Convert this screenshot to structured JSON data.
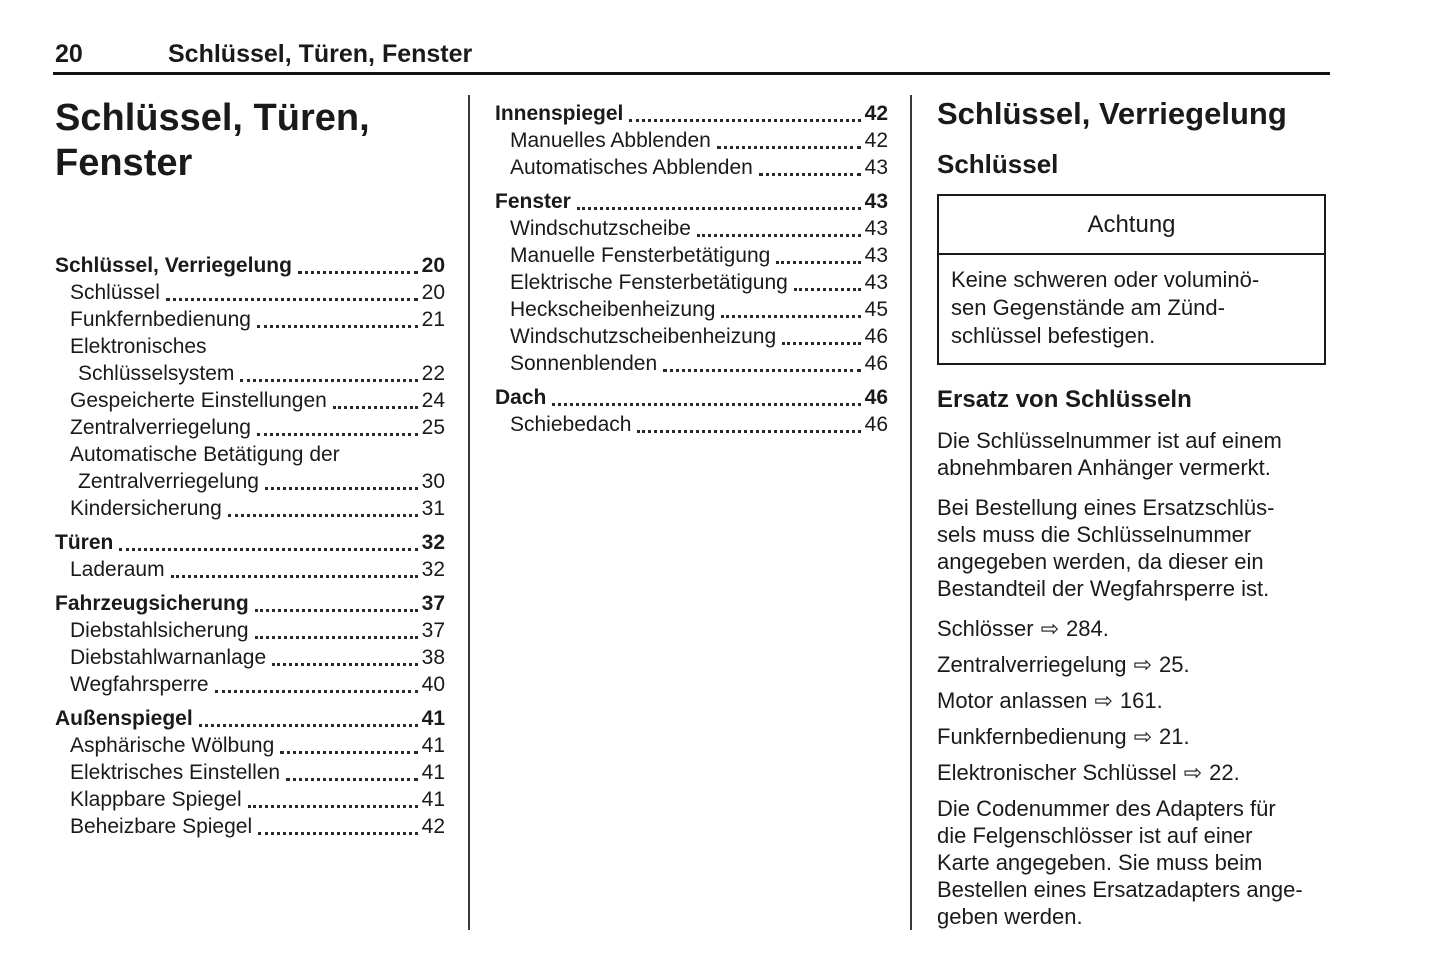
{
  "colors": {
    "text": "#1a1a1a",
    "rule": "#111111",
    "separator": "#3a3a3a",
    "background": "#ffffff"
  },
  "page_header": {
    "number": "20",
    "title": "Schlüssel, Türen, Fenster"
  },
  "left_column": {
    "chapter_title": "Schlüssel, Türen,\nFenster",
    "toc_rows": [
      {
        "label": "Schlüssel, Verriegelung",
        "page": "20",
        "bold": true,
        "indent": 0
      },
      {
        "label": "Schlüssel",
        "page": "20",
        "indent": 1
      },
      {
        "label": "Funkfernbedienung",
        "page": "21",
        "indent": 1
      },
      {
        "label": "Elektronisches",
        "page": null,
        "indent": 1
      },
      {
        "label": "Schlüsselsystem",
        "page": "22",
        "indent": 2
      },
      {
        "label": "Gespeicherte Einstellungen",
        "page": "24",
        "indent": 1
      },
      {
        "label": "Zentralverriegelung",
        "page": "25",
        "indent": 1
      },
      {
        "label": "Automatische Betätigung der",
        "page": null,
        "indent": 1
      },
      {
        "label": "Zentralverriegelung",
        "page": "30",
        "indent": 2
      },
      {
        "label": "Kindersicherung",
        "page": "31",
        "indent": 1
      },
      {
        "label": "Türen",
        "page": "32",
        "bold": true,
        "indent": 0,
        "gap": true
      },
      {
        "label": "Laderaum",
        "page": "32",
        "indent": 1
      },
      {
        "label": "Fahrzeugsicherung",
        "page": "37",
        "bold": true,
        "indent": 0,
        "gap": true
      },
      {
        "label": "Diebstahlsicherung",
        "page": "37",
        "indent": 1
      },
      {
        "label": "Diebstahlwarnanlage",
        "page": "38",
        "indent": 1
      },
      {
        "label": "Wegfahrsperre",
        "page": "40",
        "indent": 1
      },
      {
        "label": "Außenspiegel",
        "page": "41",
        "bold": true,
        "indent": 0,
        "gap": true
      },
      {
        "label": "Asphärische Wölbung",
        "page": "41",
        "indent": 1
      },
      {
        "label": "Elektrisches Einstellen",
        "page": "41",
        "indent": 1
      },
      {
        "label": "Klappbare Spiegel",
        "page": "41",
        "indent": 1
      },
      {
        "label": "Beheizbare Spiegel",
        "page": "42",
        "indent": 1
      }
    ]
  },
  "middle_column": {
    "toc_rows": [
      {
        "label": "Innenspiegel",
        "page": "42",
        "bold": true,
        "indent": 0
      },
      {
        "label": "Manuelles Abblenden",
        "page": "42",
        "indent": 1
      },
      {
        "label": "Automatisches Abblenden",
        "page": "43",
        "indent": 1
      },
      {
        "label": "Fenster",
        "page": "43",
        "bold": true,
        "indent": 0,
        "gap": true
      },
      {
        "label": "Windschutzscheibe",
        "page": "43",
        "indent": 1
      },
      {
        "label": "Manuelle Fensterbetätigung",
        "page": "43",
        "indent": 1
      },
      {
        "label": "Elektrische Fensterbetätigung",
        "page": "43",
        "indent": 1
      },
      {
        "label": "Heckscheibenheizung",
        "page": "45",
        "indent": 1
      },
      {
        "label": "Windschutzscheibenheizung",
        "page": "46",
        "indent": 1
      },
      {
        "label": "Sonnenblenden",
        "page": "46",
        "indent": 1
      },
      {
        "label": "Dach",
        "page": "46",
        "bold": true,
        "indent": 0,
        "gap": true
      },
      {
        "label": "Schiebedach",
        "page": "46",
        "indent": 1
      }
    ]
  },
  "right_column": {
    "section_title": "Schlüssel, Verriegelung",
    "subsection_title": "Schlüssel",
    "caution_box": {
      "title": "Achtung",
      "body": "Keine schweren oder voluminö-\nsen Gegenstände am Zünd-\nschlüssel befestigen."
    },
    "heading": "Ersatz von Schlüsseln",
    "paragraph_1": "Die Schlüsselnummer ist auf einem\nabnehmbaren Anhänger vermerkt.",
    "paragraph_2": "Bei Bestellung eines Ersatzschlüs-\nsels muss die Schlüsselnummer\nangegeben werden, da dieser ein\nBestandteil der Wegfahrsperre ist.",
    "ref_arrow_icon": "⇨",
    "references": [
      {
        "label": "Schlösser",
        "page": "284."
      },
      {
        "label": "Zentralverriegelung",
        "page": "25."
      },
      {
        "label": "Motor anlassen",
        "page": "161."
      },
      {
        "label": "Funkfernbedienung",
        "page": "21."
      },
      {
        "label": "Elektronischer Schlüssel",
        "page": "22."
      }
    ],
    "paragraph_3": "Die Codenummer des Adapters für\ndie Felgenschlösser ist auf einer\nKarte angegeben. Sie muss beim\nBestellen eines Ersatzadapters ange-\ngeben werden."
  }
}
